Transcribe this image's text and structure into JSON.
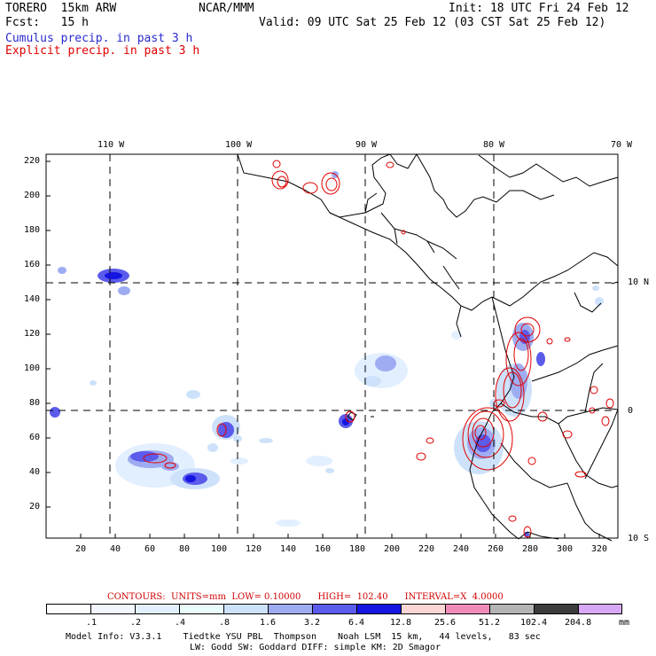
{
  "header": {
    "model": "TORERO  15km ARW",
    "org": "NCAR/MMM",
    "init": "Init: 18 UTC Fri 24 Feb 12",
    "fcst": "Fcst:   15 h",
    "valid": "Valid: 09 UTC Sat 25 Feb 12 (03 CST Sat 25 Feb 12)",
    "cumulus_label": "Cumulus precip. in past 3 h",
    "explicit_label": "Explicit precip. in past 3 h",
    "cumulus_color": "#2a2ad0",
    "explicit_color": "#e00000"
  },
  "map": {
    "lon_labels": [
      "110 W",
      "100 W",
      "90 W",
      "80 W",
      "70 W"
    ],
    "lat_labels": [
      "10 N",
      "0",
      "10 S"
    ],
    "y_ticks": [
      "220",
      "200",
      "180",
      "160",
      "140",
      "120",
      "100",
      "80",
      "60",
      "40",
      "20"
    ],
    "x_ticks": [
      "20",
      "40",
      "60",
      "80",
      "100",
      "120",
      "140",
      "160",
      "180",
      "200",
      "220",
      "240",
      "260",
      "280",
      "300",
      "320"
    ]
  },
  "contour_info": {
    "text": "CONTOURS:  UNITS=mm  LOW= 0.10000      HIGH=  102.40      INTERVAL=X  4.0000",
    "color": "#d00000"
  },
  "colorbar": {
    "labels": [
      ".1",
      ".2",
      ".4",
      ".8",
      "1.6",
      "3.2",
      "6.4",
      "12.8",
      "25.6",
      "51.2",
      "102.4",
      "204.8"
    ],
    "unit": "mm",
    "colors": [
      "#ffffff",
      "#f2f7ff",
      "#e2efff",
      "#eafdfd",
      "#cde2fa",
      "#9eacf2",
      "#5b5bec",
      "#1515e2",
      "#fcd6d6",
      "#f08cba",
      "#b4b4b4",
      "#3c3c3c",
      "#d8a8f8"
    ]
  },
  "footer": {
    "line1": "Model Info: V3.3.1    Tiedtke YSU PBL  Thompson    Noah LSM  15 km,   44 levels,   83 sec",
    "line2": "LW: Godd SW: Goddard DIFF: simple KM: 2D Smagor"
  }
}
